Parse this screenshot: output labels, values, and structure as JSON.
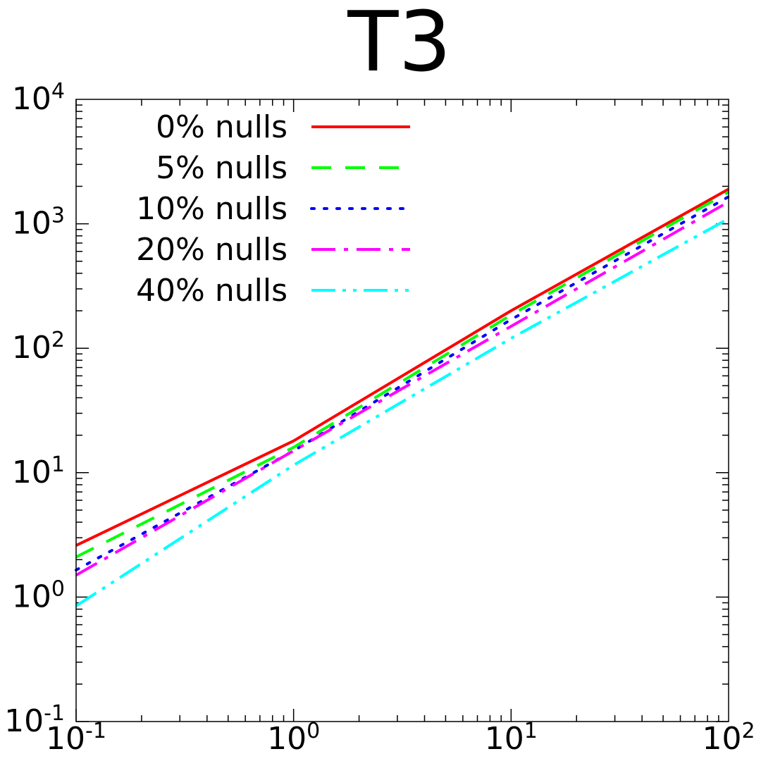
{
  "chart_data": {
    "type": "line",
    "title": "T3",
    "xlabel": "",
    "ylabel": "",
    "xscale": "log",
    "yscale": "log",
    "xlim": [
      0.1,
      100
    ],
    "ylim": [
      0.1,
      10000
    ],
    "grid": false,
    "legend_position": "top-left",
    "x_ticks": [
      {
        "base": "10",
        "exp": "-1",
        "value": 0.1
      },
      {
        "base": "10",
        "exp": "0",
        "value": 1
      },
      {
        "base": "10",
        "exp": "1",
        "value": 10
      },
      {
        "base": "10",
        "exp": "2",
        "value": 100
      }
    ],
    "y_ticks": [
      {
        "base": "10",
        "exp": "-1",
        "value": 0.1
      },
      {
        "base": "10",
        "exp": "0",
        "value": 1
      },
      {
        "base": "10",
        "exp": "1",
        "value": 10
      },
      {
        "base": "10",
        "exp": "2",
        "value": 100
      },
      {
        "base": "10",
        "exp": "3",
        "value": 1000
      },
      {
        "base": "10",
        "exp": "4",
        "value": 10000
      }
    ],
    "x": [
      0.1,
      1,
      10,
      100
    ],
    "series": [
      {
        "name": "0% nulls",
        "color": "#ff0000",
        "dash": "solid",
        "values": [
          2.6,
          18,
          200,
          1900
        ]
      },
      {
        "name": "5% nulls",
        "color": "#00ff00",
        "dash": "dashed",
        "values": [
          2.1,
          16,
          185,
          1800
        ]
      },
      {
        "name": "10% nulls",
        "color": "#0000ff",
        "dash": "dotted",
        "values": [
          1.65,
          15,
          170,
          1650
        ]
      },
      {
        "name": "20% nulls",
        "color": "#ff00ff",
        "dash": "dash-dot",
        "values": [
          1.5,
          15,
          150,
          1500
        ]
      },
      {
        "name": "40% nulls",
        "color": "#00ffff",
        "dash": "dash-dot-dot",
        "values": [
          0.85,
          11.5,
          120,
          1100
        ]
      }
    ]
  }
}
